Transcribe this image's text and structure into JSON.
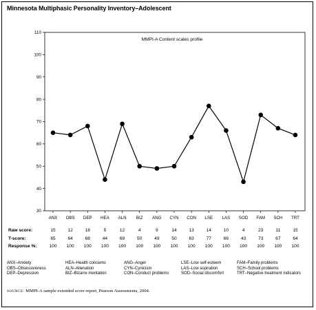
{
  "title": "Minnesota Multiphasic Personality Inventory–Adolescent",
  "chart_data": {
    "type": "line",
    "title": "MMPI-A Content scales profile",
    "xlabel": "",
    "ylabel": "",
    "ylim": [
      30,
      110
    ],
    "yticks": [
      30,
      40,
      50,
      60,
      70,
      80,
      90,
      100,
      110
    ],
    "grid": false,
    "categories": [
      "ANX",
      "OBS",
      "DEP",
      "HEA",
      "ALN",
      "BIZ",
      "ANG",
      "CYN",
      "CON",
      "LSE",
      "LAS",
      "SOD",
      "FAM",
      "SCH",
      "TRT"
    ],
    "series": [
      {
        "values": [
          65,
          64,
          68,
          44,
          69,
          50,
          49,
          50,
          63,
          77,
          66,
          43,
          73,
          67,
          64
        ]
      }
    ]
  },
  "score_table": {
    "rows": [
      {
        "label": "Raw score:",
        "values": [
          "15",
          "12",
          "18",
          "5",
          "12",
          "4",
          "9",
          "14",
          "13",
          "14",
          "10",
          "4",
          "23",
          "11",
          "15"
        ]
      },
      {
        "label": "T-score:",
        "values": [
          "65",
          "64",
          "68",
          "44",
          "69",
          "50",
          "49",
          "50",
          "63",
          "77",
          "66",
          "43",
          "73",
          "67",
          "64"
        ]
      },
      {
        "label": "Response %:",
        "values": [
          "100",
          "100",
          "100",
          "100",
          "100",
          "100",
          "100",
          "100",
          "100",
          "100",
          "100",
          "100",
          "100",
          "100",
          "100"
        ]
      }
    ]
  },
  "legend": {
    "columns": [
      [
        "ANX–Anxiety",
        "OBS–Obsessiveness",
        "DEP–Depression"
      ],
      [
        "HEA–Health concerns",
        "ALN–Alienation",
        "BIZ–Bizarre mentation"
      ],
      [
        "ANG–Anger",
        "CYN–Cynicism",
        "CON–Conduct problems"
      ],
      [
        "LSE–Low self-esteem",
        "LAS–Low aspiration",
        "SOD–Social discomfort"
      ],
      [
        "FAM–Family problems",
        "SCH–School problems",
        "TRT–Negative treatment indicators"
      ]
    ]
  },
  "source": {
    "label": "SOURCE:",
    "text": "MMPI-A sample extended score report, Pearson Assessments, 2004."
  }
}
